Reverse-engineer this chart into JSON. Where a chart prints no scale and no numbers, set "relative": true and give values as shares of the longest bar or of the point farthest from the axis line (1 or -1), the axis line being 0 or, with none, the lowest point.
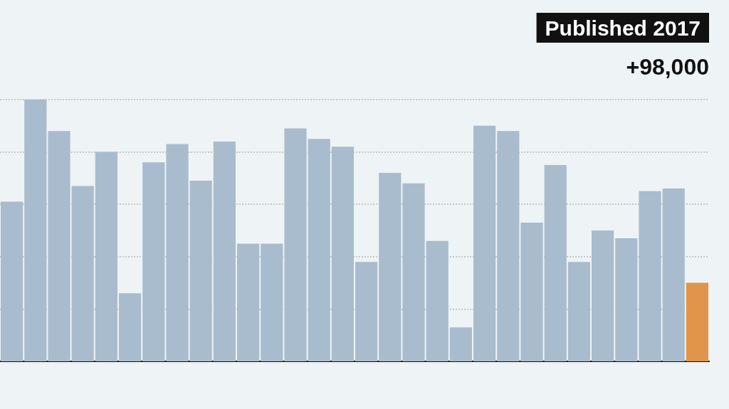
{
  "chart_data": {
    "type": "bar",
    "title": "Published 2017",
    "annotations": [
      "+98,000"
    ],
    "relative": true,
    "grid": "y",
    "categories": [
      null,
      null,
      null,
      null,
      null,
      null,
      null,
      null,
      null,
      null,
      null,
      null,
      null,
      null,
      null,
      null,
      null,
      null,
      null,
      null,
      null,
      null,
      null,
      null,
      null,
      null,
      null,
      null,
      null,
      null
    ],
    "values": [
      0.61,
      1,
      0.88,
      0.67,
      0.8,
      0.26,
      0.76,
      0.83,
      0.69,
      0.84,
      0.45,
      0.45,
      0.89,
      0.85,
      0.82,
      0.38,
      0.72,
      0.68,
      0.46,
      0.13,
      0.9,
      0.88,
      0.53,
      0.75,
      0.38,
      0.5,
      0.47,
      0.65,
      0.66,
      0.3
    ],
    "colors": [
      "#a9bccd",
      "#a9bccd",
      "#a9bccd",
      "#a9bccd",
      "#a9bccd",
      "#a9bccd",
      "#a9bccd",
      "#a9bccd",
      "#a9bccd",
      "#a9bccd",
      "#a9bccd",
      "#a9bccd",
      "#a9bccd",
      "#a9bccd",
      "#a9bccd",
      "#a9bccd",
      "#a9bccd",
      "#a9bccd",
      "#a9bccd",
      "#a9bccd",
      "#a9bccd",
      "#a9bccd",
      "#a9bccd",
      "#a9bccd",
      "#a9bccd",
      "#a9bccd",
      "#a9bccd",
      "#a9bccd",
      "#a9bccd",
      "#e0954a"
    ]
  }
}
